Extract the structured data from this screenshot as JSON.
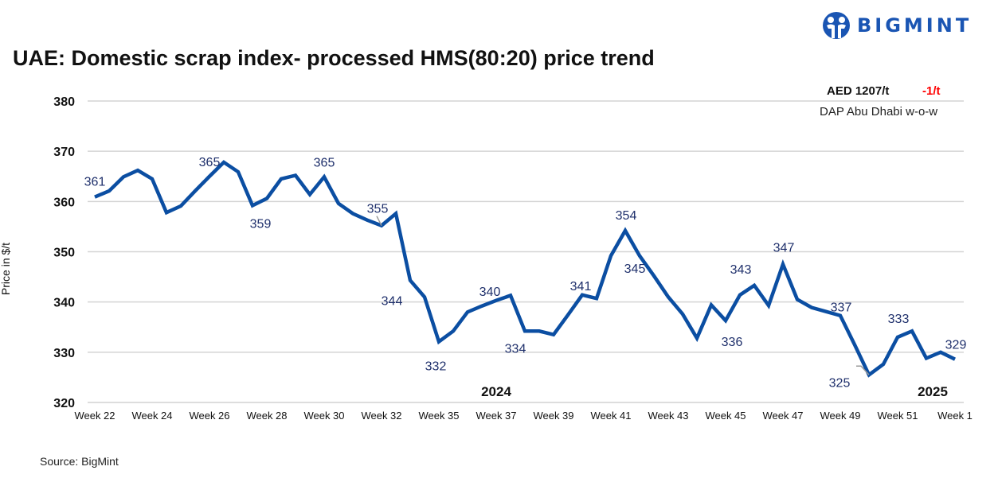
{
  "title": "UAE: Domestic scrap index- processed HMS(80:20) price trend",
  "logo": {
    "text": "BIGMINT",
    "color": "#1a55b3"
  },
  "summary": {
    "price": "AED 1207/t",
    "change": "-1/t",
    "basis": "DAP Abu Dhabi w-o-w",
    "change_color": "#ff0000"
  },
  "source": "Source: BigMint",
  "chart_data": {
    "type": "line",
    "title": "UAE: Domestic scrap index- processed HMS(80:20) price trend",
    "ylabel": "Price in $/t",
    "xlabel": "",
    "ylim": [
      320,
      380
    ],
    "yticks": [
      320,
      330,
      340,
      350,
      360,
      370,
      380
    ],
    "grid": true,
    "line_color": "#0b4ea2",
    "x_tick_labels": [
      "Week 22",
      "Week 24",
      "Week 26",
      "Week 28",
      "Week 30",
      "Week 32",
      "Week 35",
      "Week 37",
      "Week 39",
      "Week 41",
      "Week 43",
      "Week 45",
      "Week 47",
      "Week 49",
      "Week 51",
      "Week 1"
    ],
    "year_labels": [
      {
        "text": "2024",
        "at_tick": 7
      },
      {
        "text": "2025",
        "at_tick": 15
      }
    ],
    "values": [
      360.9,
      362.1,
      364.9,
      366.2,
      364.5,
      357.8,
      359.1,
      362.1,
      365.0,
      367.8,
      365.9,
      359.2,
      360.6,
      364.5,
      365.2,
      361.4,
      364.9,
      359.6,
      357.6,
      356.3,
      355.2,
      357.6,
      344.3,
      341.0,
      332.1,
      334.2,
      338.0,
      339.2,
      340.3,
      341.3,
      334.2,
      334.2,
      333.5,
      337.4,
      341.4,
      340.7,
      349.2,
      354.2,
      349.2,
      345.2,
      341.0,
      337.6,
      332.8,
      339.4,
      336.3,
      341.4,
      343.3,
      339.3,
      347.5,
      340.5,
      338.9,
      338.1,
      337.3,
      331.5,
      325.5,
      327.6,
      333.0,
      334.2,
      328.8,
      330.0,
      328.6
    ],
    "data_labels": [
      {
        "index": 0,
        "text": "361"
      },
      {
        "index": 8,
        "text": "365"
      },
      {
        "index": 11,
        "text": "359"
      },
      {
        "index": 16,
        "text": "365"
      },
      {
        "index": 20,
        "text": "355"
      },
      {
        "index": 22,
        "text": "344"
      },
      {
        "index": 24,
        "text": "332"
      },
      {
        "index": 28,
        "text": "340"
      },
      {
        "index": 30,
        "text": "334"
      },
      {
        "index": 34,
        "text": "341"
      },
      {
        "index": 37,
        "text": "354"
      },
      {
        "index": 39,
        "text": "345"
      },
      {
        "index": 46,
        "text": "343"
      },
      {
        "index": 44,
        "text": "336"
      },
      {
        "index": 48,
        "text": "347"
      },
      {
        "index": 52,
        "text": "337"
      },
      {
        "index": 54,
        "text": "325"
      },
      {
        "index": 56,
        "text": "333"
      },
      {
        "index": 60,
        "text": "329"
      }
    ]
  }
}
